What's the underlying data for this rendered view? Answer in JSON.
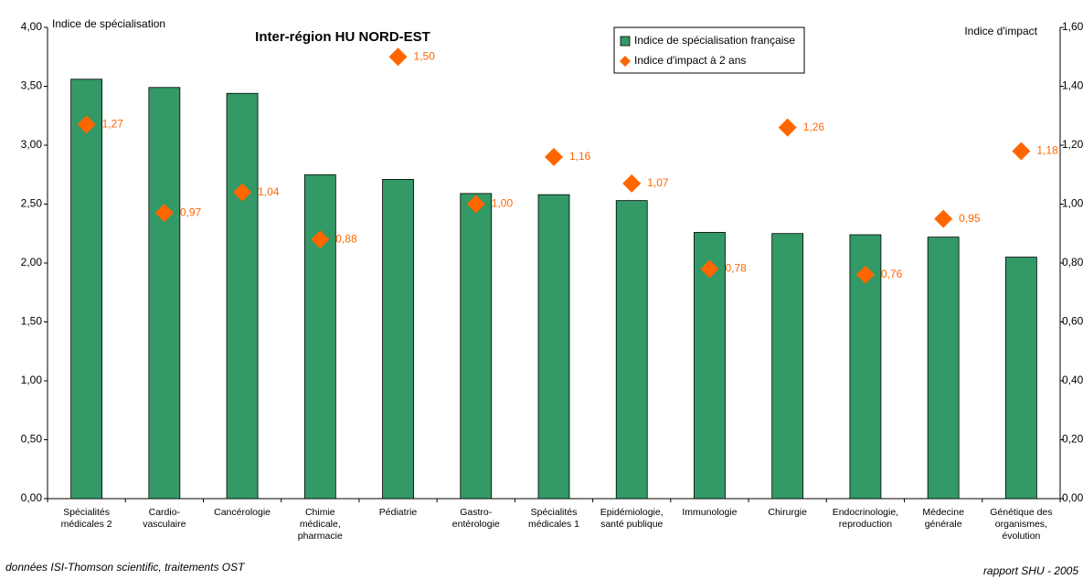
{
  "chart_data": {
    "type": "bar",
    "title": "Inter-région HU NORD-EST",
    "y_label": "Indice de spécialisation",
    "y2_label": "Indice d'impact",
    "source": "données ISI-Thomson scientific, traitements OST",
    "credit": "rapport SHU - 2005",
    "categories": [
      "Spécialités\nmédicales 2",
      "Cardio-\nvasculaire",
      "Cancérologie",
      "Chimie\nmédicale,\npharmacie",
      "Pédiatrie",
      "Gastro-\nentérologie",
      "Spécialités\nmédicales 1",
      "Epidémiologie,\nsanté publique",
      "Immunologie",
      "Chirurgie",
      "Endocrinologie,\nreproduction",
      "Médecine\ngénérale",
      "Génétique des\norganismes,\névolution"
    ],
    "series": [
      {
        "name": "Indice de spécialisation française",
        "color": "#339966",
        "type": "bar",
        "values": [
          3.56,
          3.49,
          3.44,
          2.75,
          2.71,
          2.59,
          2.58,
          2.53,
          2.26,
          2.25,
          2.24,
          2.22,
          2.05
        ]
      },
      {
        "name": "Indice d'impact à 2 ans",
        "color": "#ff6600",
        "type": "scatter",
        "axis": "y2",
        "values": [
          1.27,
          0.97,
          1.04,
          0.88,
          1.5,
          1.0,
          1.16,
          1.07,
          0.78,
          1.26,
          0.76,
          0.95,
          1.18
        ],
        "value_labels": [
          "1,27",
          "0,97",
          "1,04",
          "0,88",
          "1,50",
          "1,00",
          "1,16",
          "1,07",
          "0,78",
          "1,26",
          "0,76",
          "0,95",
          "1,18"
        ]
      }
    ],
    "ylim": [
      0,
      4
    ],
    "yticks": [
      {
        "value": 0,
        "label": "0,00"
      },
      {
        "value": 0.5,
        "label": "0,50"
      },
      {
        "value": 1,
        "label": "1,00"
      },
      {
        "value": 1.5,
        "label": "1,50"
      },
      {
        "value": 2,
        "label": "2,00"
      },
      {
        "value": 2.5,
        "label": "2,50"
      },
      {
        "value": 3,
        "label": "3,00"
      },
      {
        "value": 3.5,
        "label": "3,50"
      },
      {
        "value": 4,
        "label": "4,00"
      }
    ],
    "y2lim": [
      0,
      1.6
    ],
    "y2ticks": [
      {
        "value": 0,
        "label": "0,00"
      },
      {
        "value": 0.2,
        "label": "0,20"
      },
      {
        "value": 0.4,
        "label": "0,40"
      },
      {
        "value": 0.6,
        "label": "0,60"
      },
      {
        "value": 0.8,
        "label": "0,80"
      },
      {
        "value": 1,
        "label": "1,00"
      },
      {
        "value": 1.2,
        "label": "1,20"
      },
      {
        "value": 1.4,
        "label": "1,40"
      },
      {
        "value": 1.6,
        "label": "1,60"
      }
    ],
    "legend": "top-center"
  }
}
